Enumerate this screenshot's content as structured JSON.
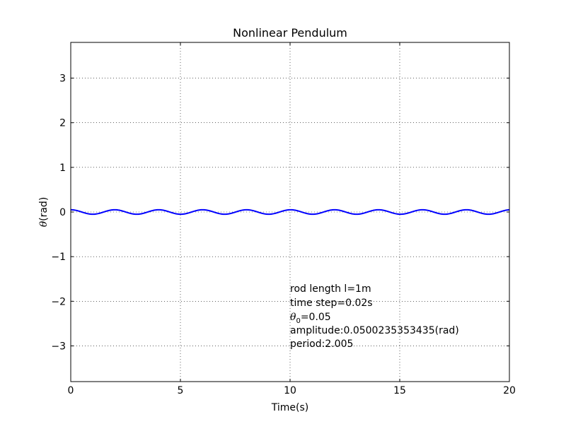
{
  "chart_data": {
    "type": "line",
    "title": "Nonlinear Pendulum",
    "xlabel": "Time(s)",
    "ylabel_symbol": "θ",
    "ylabel_unit": "(rad)",
    "xlim": [
      0,
      20
    ],
    "ylim": [
      -3.8,
      3.8
    ],
    "xticks": [
      0,
      5,
      10,
      15,
      20
    ],
    "xtick_labels": [
      "0",
      "5",
      "10",
      "15",
      "20"
    ],
    "yticks": [
      -3,
      -2,
      -1,
      0,
      1,
      2,
      3
    ],
    "ytick_labels": [
      "−3",
      "−2",
      "−1",
      "0",
      "1",
      "2",
      "3"
    ],
    "grid": true,
    "series": [
      {
        "color": "#0000ff",
        "amplitude": 0.0500235353435,
        "period": 2.005,
        "theta0": 0.05,
        "t_start": 0,
        "t_end": 20,
        "time_step": 0.02
      }
    ],
    "annotations": {
      "rod_length": "rod length l=1m",
      "time_step": "time step=0.02s",
      "theta0_symbol": "θ",
      "theta0_sub": "0",
      "theta0_value": "=0.05",
      "amplitude": "amplitude:0.0500235353435(rad)",
      "period": "period:2.005"
    }
  }
}
